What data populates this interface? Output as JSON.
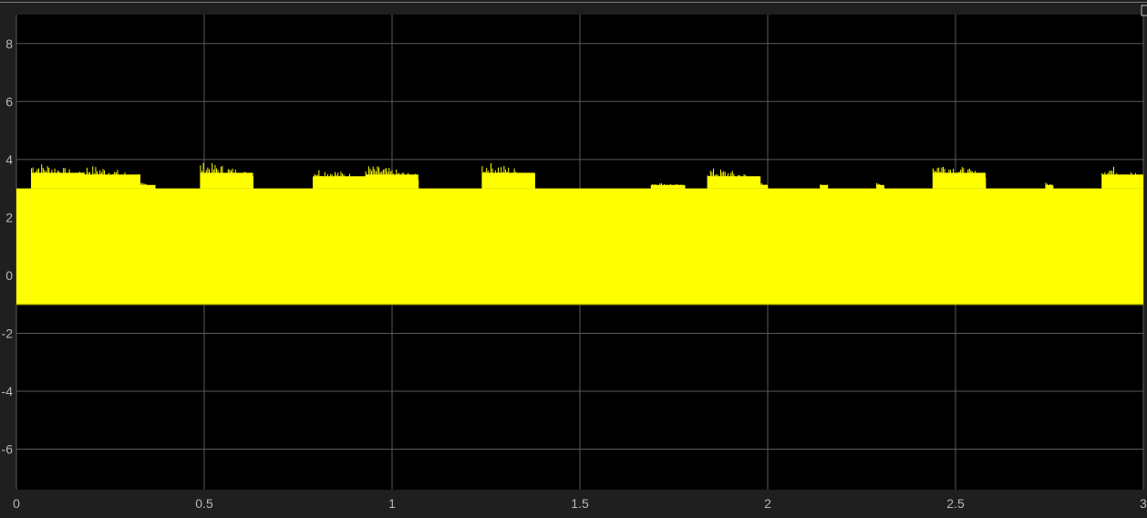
{
  "window": {
    "background_color": "#1f1f1f",
    "axes_background_color": "#000000",
    "grid_color": "#5a5a5a",
    "tick_label_color": "#b8b8b8",
    "corner_icon": "square-icon"
  },
  "chart_data": {
    "type": "area",
    "title": "",
    "xlabel": "",
    "ylabel": "",
    "xlim": [
      0,
      3
    ],
    "ylim": [
      -7.4,
      9
    ],
    "grid": true,
    "x_ticks": [
      0,
      0.5,
      1,
      1.5,
      2,
      2.5,
      3
    ],
    "x_tick_labels": [
      "0",
      "0.5",
      "1",
      "1.5",
      "2",
      "2.5",
      "3"
    ],
    "y_ticks": [
      -6,
      -4,
      -2,
      0,
      2,
      4,
      6,
      8
    ],
    "y_tick_labels": [
      "-6",
      "-4",
      "-2",
      "0",
      "2",
      "4",
      "6",
      "8"
    ],
    "series": [
      {
        "color": "#ffff00",
        "style": "dense oscillating signal",
        "lower_bound": -1,
        "baseline_upper": 3,
        "burst_regions": [
          {
            "x_start": 0.04,
            "x_end": 0.18,
            "peak": 3.9
          },
          {
            "x_start": 0.18,
            "x_end": 0.33,
            "peak": 3.8
          },
          {
            "x_start": 0.33,
            "x_end": 0.37,
            "peak": 3.2
          },
          {
            "x_start": 0.49,
            "x_end": 0.63,
            "peak": 3.9
          },
          {
            "x_start": 0.79,
            "x_end": 0.93,
            "peak": 3.7
          },
          {
            "x_start": 0.93,
            "x_end": 1.07,
            "peak": 3.8
          },
          {
            "x_start": 1.24,
            "x_end": 1.38,
            "peak": 3.9
          },
          {
            "x_start": 1.69,
            "x_end": 1.78,
            "peak": 3.2
          },
          {
            "x_start": 1.84,
            "x_end": 1.98,
            "peak": 3.7
          },
          {
            "x_start": 1.98,
            "x_end": 2.0,
            "peak": 3.2
          },
          {
            "x_start": 2.14,
            "x_end": 2.16,
            "peak": 3.2
          },
          {
            "x_start": 2.29,
            "x_end": 2.31,
            "peak": 3.2
          },
          {
            "x_start": 2.44,
            "x_end": 2.58,
            "peak": 3.9
          },
          {
            "x_start": 2.74,
            "x_end": 2.76,
            "peak": 3.2
          },
          {
            "x_start": 2.89,
            "x_end": 3.0,
            "peak": 3.8
          }
        ]
      }
    ]
  }
}
